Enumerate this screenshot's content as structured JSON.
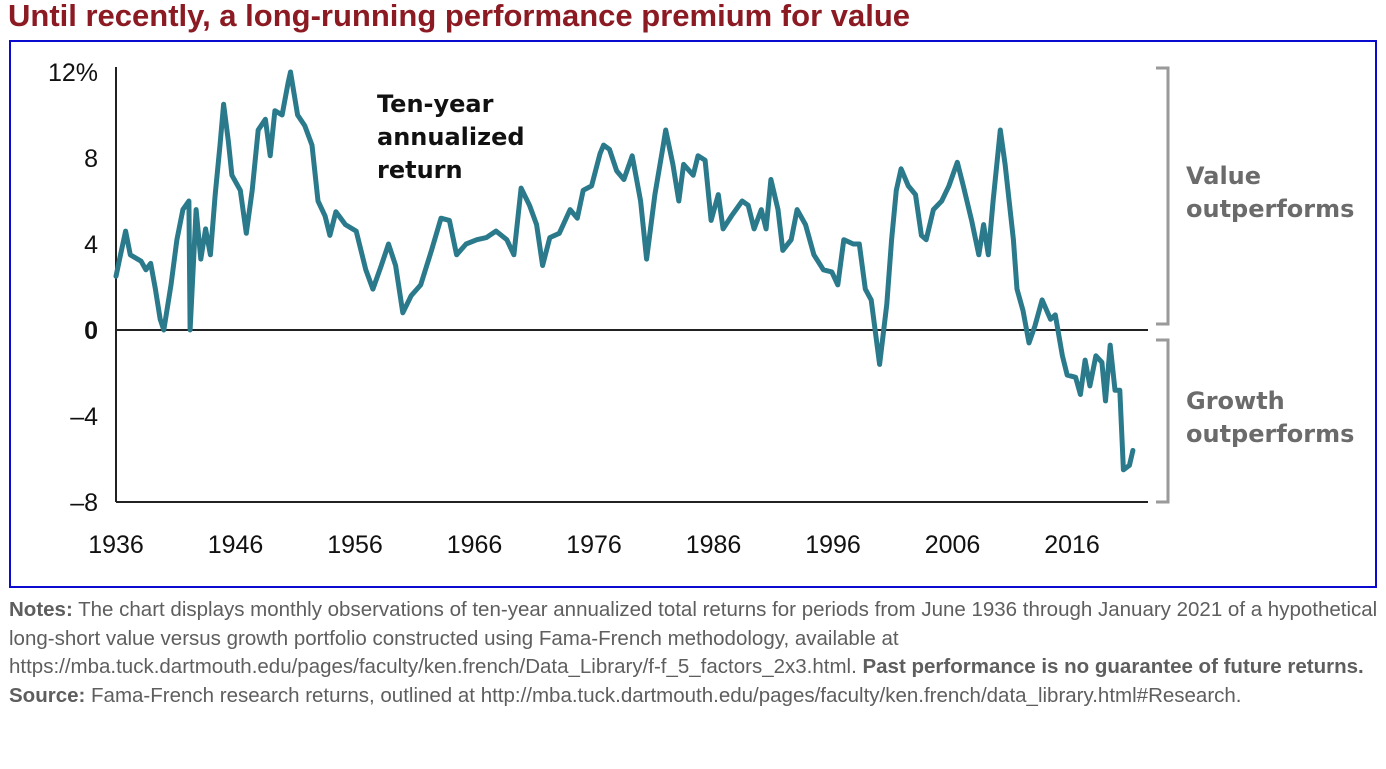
{
  "title": "Until recently, a long-running performance premium for value",
  "notes": {
    "notes_label": "Notes:",
    "notes_text": " The chart displays monthly observations of ten-year annualized total returns for periods from June 1936 through January 2021 of a hypothetical long-short value versus growth portfolio constructed using Fama-French methodology, available at https://mba.tuck.dartmouth.edu/pages/faculty/ken.french/Data_Library/f-f_5_factors_2x3.html. ",
    "disclaimer": "Past performance is no guarantee of future returns.",
    "source_label": "Source:",
    "source_text": " Fama-French research returns, outlined at http://mba.tuck.dartmouth.edu/pages/faculty/ken.french/data_library.html#Research."
  },
  "colors": {
    "title": "#8b1a23",
    "frame": "#0b0bd0",
    "line": "#2a7a8c",
    "axis": "#222222",
    "bracket": "#9a9a9a",
    "side_label": "#6b6b6b",
    "notes": "#5e5e5e"
  },
  "chart_data": {
    "type": "line",
    "title": "",
    "annotation": [
      "Ten-year",
      "annualized",
      "return"
    ],
    "xlabel": "",
    "ylabel": "",
    "xlim": [
      1936,
      2021.1
    ],
    "ylim": [
      -8,
      12
    ],
    "yticks": [
      12,
      8,
      4,
      0,
      -4,
      -8
    ],
    "ytick_labels": [
      "12%",
      "8",
      "4",
      "0",
      "–4",
      "–8"
    ],
    "xticks": [
      1936,
      1946,
      1956,
      1966,
      1976,
      1986,
      1996,
      2006,
      2016
    ],
    "xtick_labels": [
      "1936",
      "1946",
      "1956",
      "1966",
      "1976",
      "1986",
      "1996",
      "2006",
      "2016"
    ],
    "grid": false,
    "zero_line": true,
    "brackets": [
      {
        "label": [
          "Value",
          "outperforms"
        ],
        "range": [
          0,
          12
        ]
      },
      {
        "label": [
          "Growth",
          "outperforms"
        ],
        "range": [
          -8,
          0
        ]
      }
    ],
    "series": [
      {
        "name": "Ten-year annualized return (value minus growth)",
        "points": [
          [
            1936.0,
            2.5
          ],
          [
            1936.3,
            3.3
          ],
          [
            1936.8,
            4.6
          ],
          [
            1937.2,
            3.5
          ],
          [
            1938.1,
            3.2
          ],
          [
            1938.5,
            2.8
          ],
          [
            1938.9,
            3.1
          ],
          [
            1939.3,
            1.9
          ],
          [
            1939.7,
            0.5
          ],
          [
            1940.0,
            0.0
          ],
          [
            1940.6,
            2.1
          ],
          [
            1941.1,
            4.2
          ],
          [
            1941.6,
            5.6
          ],
          [
            1942.1,
            6.0
          ],
          [
            1942.2,
            0.0
          ],
          [
            1942.7,
            5.6
          ],
          [
            1943.1,
            3.3
          ],
          [
            1943.5,
            4.7
          ],
          [
            1943.9,
            3.5
          ],
          [
            1944.3,
            6.3
          ],
          [
            1944.7,
            8.6
          ],
          [
            1945.0,
            10.5
          ],
          [
            1945.4,
            8.8
          ],
          [
            1945.7,
            7.2
          ],
          [
            1946.4,
            6.5
          ],
          [
            1946.9,
            4.5
          ],
          [
            1947.4,
            6.5
          ],
          [
            1947.9,
            9.3
          ],
          [
            1948.5,
            9.8
          ],
          [
            1948.9,
            8.1
          ],
          [
            1949.3,
            10.2
          ],
          [
            1949.9,
            10.0
          ],
          [
            1950.4,
            11.5
          ],
          [
            1950.6,
            12.0
          ],
          [
            1951.2,
            10.0
          ],
          [
            1951.8,
            9.5
          ],
          [
            1952.4,
            8.6
          ],
          [
            1952.9,
            6.0
          ],
          [
            1953.5,
            5.3
          ],
          [
            1953.9,
            4.4
          ],
          [
            1954.4,
            5.5
          ],
          [
            1955.2,
            4.9
          ],
          [
            1956.1,
            4.6
          ],
          [
            1956.9,
            2.8
          ],
          [
            1957.5,
            1.9
          ],
          [
            1958.2,
            3.0
          ],
          [
            1958.8,
            4.0
          ],
          [
            1959.4,
            3.0
          ],
          [
            1960.0,
            0.8
          ],
          [
            1960.7,
            1.6
          ],
          [
            1961.5,
            2.1
          ],
          [
            1962.4,
            3.7
          ],
          [
            1963.2,
            5.2
          ],
          [
            1963.9,
            5.1
          ],
          [
            1964.5,
            3.5
          ],
          [
            1965.3,
            4.0
          ],
          [
            1966.2,
            4.2
          ],
          [
            1967.0,
            4.3
          ],
          [
            1967.8,
            4.6
          ],
          [
            1968.7,
            4.2
          ],
          [
            1969.3,
            3.5
          ],
          [
            1969.9,
            6.6
          ],
          [
            1970.6,
            5.8
          ],
          [
            1971.2,
            4.9
          ],
          [
            1971.7,
            3.0
          ],
          [
            1972.3,
            4.3
          ],
          [
            1973.1,
            4.5
          ],
          [
            1974.0,
            5.6
          ],
          [
            1974.6,
            5.2
          ],
          [
            1975.1,
            6.5
          ],
          [
            1975.8,
            6.7
          ],
          [
            1976.5,
            8.2
          ],
          [
            1976.8,
            8.6
          ],
          [
            1977.3,
            8.4
          ],
          [
            1977.9,
            7.4
          ],
          [
            1978.5,
            7.0
          ],
          [
            1979.2,
            8.1
          ],
          [
            1979.9,
            6.0
          ],
          [
            1980.4,
            3.3
          ],
          [
            1981.1,
            6.3
          ],
          [
            1981.8,
            8.6
          ],
          [
            1982.0,
            9.3
          ],
          [
            1982.6,
            7.7
          ],
          [
            1983.1,
            6.0
          ],
          [
            1983.5,
            7.7
          ],
          [
            1984.3,
            7.2
          ],
          [
            1984.7,
            8.1
          ],
          [
            1985.3,
            7.9
          ],
          [
            1985.8,
            5.1
          ],
          [
            1986.4,
            6.3
          ],
          [
            1986.8,
            4.7
          ],
          [
            1987.5,
            5.3
          ],
          [
            1988.4,
            6.0
          ],
          [
            1988.9,
            5.8
          ],
          [
            1989.4,
            4.7
          ],
          [
            1990.0,
            5.6
          ],
          [
            1990.4,
            4.7
          ],
          [
            1990.8,
            7.0
          ],
          [
            1991.4,
            5.6
          ],
          [
            1991.8,
            3.7
          ],
          [
            1992.5,
            4.2
          ],
          [
            1993.0,
            5.6
          ],
          [
            1993.7,
            4.9
          ],
          [
            1994.4,
            3.5
          ],
          [
            1995.2,
            2.8
          ],
          [
            1995.9,
            2.7
          ],
          [
            1996.4,
            2.1
          ],
          [
            1996.9,
            4.2
          ],
          [
            1997.7,
            4.0
          ],
          [
            1998.2,
            4.0
          ],
          [
            1998.7,
            1.9
          ],
          [
            1999.2,
            1.4
          ],
          [
            1999.9,
            -1.6
          ],
          [
            2000.5,
            1.2
          ],
          [
            2000.9,
            4.2
          ],
          [
            2001.3,
            6.5
          ],
          [
            2001.7,
            7.5
          ],
          [
            2002.3,
            6.7
          ],
          [
            2002.9,
            6.3
          ],
          [
            2003.4,
            4.4
          ],
          [
            2003.8,
            4.2
          ],
          [
            2004.4,
            5.6
          ],
          [
            2005.1,
            6.0
          ],
          [
            2005.7,
            6.7
          ],
          [
            2006.4,
            7.8
          ],
          [
            2006.9,
            6.7
          ],
          [
            2007.6,
            5.1
          ],
          [
            2008.2,
            3.5
          ],
          [
            2008.6,
            4.9
          ],
          [
            2009.0,
            3.5
          ],
          [
            2009.4,
            6.0
          ],
          [
            2010.0,
            9.3
          ],
          [
            2010.4,
            7.7
          ],
          [
            2011.1,
            4.2
          ],
          [
            2011.4,
            1.9
          ],
          [
            2011.9,
            0.9
          ],
          [
            2012.4,
            -0.6
          ],
          [
            2012.9,
            0.2
          ],
          [
            2013.5,
            1.4
          ],
          [
            2014.2,
            0.5
          ],
          [
            2014.6,
            0.7
          ],
          [
            2015.2,
            -1.2
          ],
          [
            2015.6,
            -2.1
          ],
          [
            2016.3,
            -2.2
          ],
          [
            2016.7,
            -3.0
          ],
          [
            2017.1,
            -1.4
          ],
          [
            2017.5,
            -2.6
          ],
          [
            2018.0,
            -1.2
          ],
          [
            2018.5,
            -1.5
          ],
          [
            2018.8,
            -3.3
          ],
          [
            2019.2,
            -0.7
          ],
          [
            2019.6,
            -2.8
          ],
          [
            2020.0,
            -2.8
          ],
          [
            2020.3,
            -6.5
          ],
          [
            2020.8,
            -6.3
          ],
          [
            2021.1,
            -5.6
          ]
        ]
      }
    ]
  }
}
